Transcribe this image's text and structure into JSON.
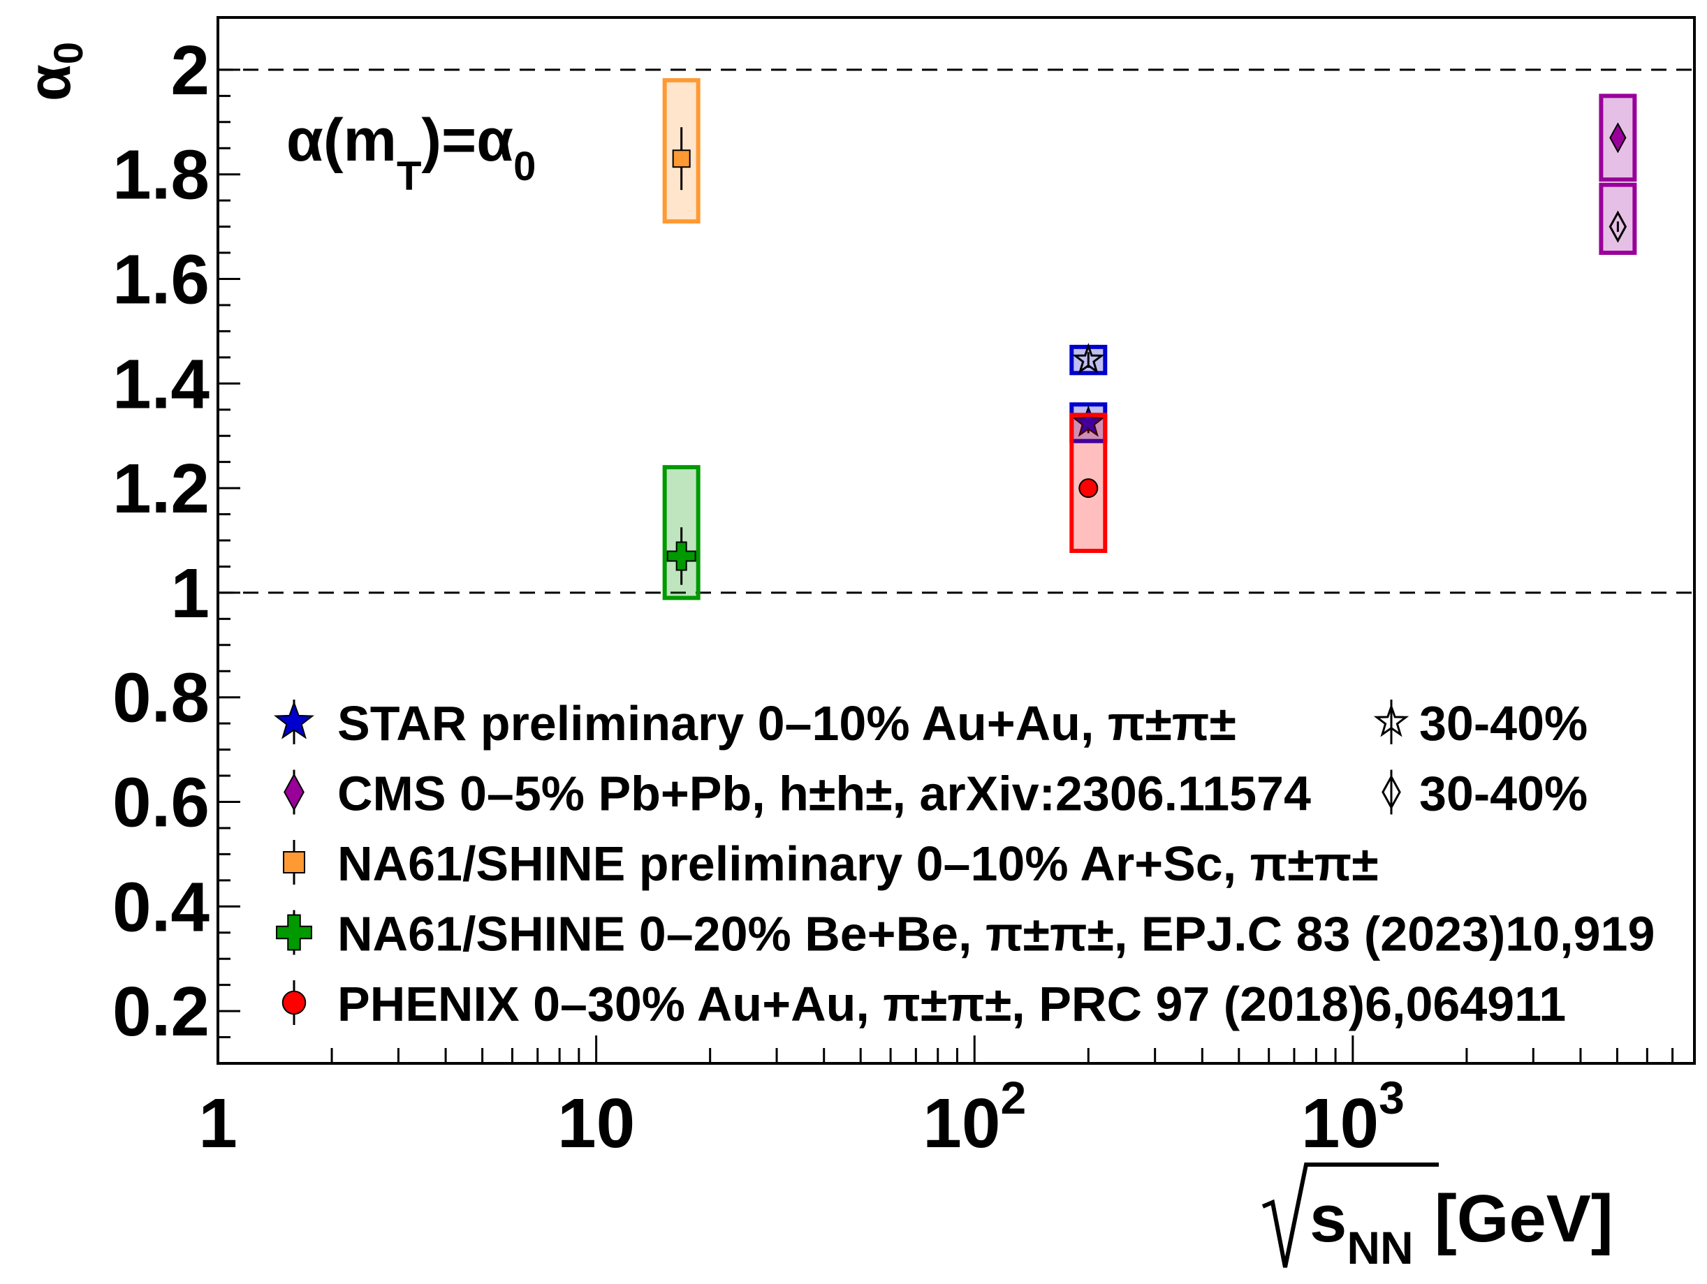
{
  "chart_data": {
    "type": "scatter",
    "x_scale": "log",
    "xlim": [
      1,
      8000
    ],
    "ylim": [
      0.1,
      2.1
    ],
    "xlabel": "√s_NN [GeV]",
    "xlabel_parts": {
      "sqrt_base": "s",
      "sub": "NN",
      "unit": "[GeV]"
    },
    "ylabel": "α_0",
    "ylabel_parts": {
      "base": "α",
      "sub": "0"
    },
    "x_ticks": [
      {
        "value": 1,
        "base": "1",
        "sup": ""
      },
      {
        "value": 10,
        "base": "10",
        "sup": ""
      },
      {
        "value": 100,
        "base": "10",
        "sup": "2"
      },
      {
        "value": 1000,
        "base": "10",
        "sup": "3"
      }
    ],
    "y_ticks": [
      0.2,
      0.4,
      0.6,
      0.8,
      1,
      1.2,
      1.4,
      1.6,
      1.8,
      2
    ],
    "y_tick_labels": [
      "0.2",
      "0.4",
      "0.6",
      "0.8",
      "1",
      "1.2",
      "1.4",
      "1.6",
      "1.8",
      "2"
    ],
    "reference_lines": [
      1,
      2
    ],
    "annotation": {
      "main": "α(m",
      "sub_T": "T",
      "mid": ")=α",
      "sub_0": "0"
    },
    "series": [
      {
        "name": "STAR preliminary 0–10% Au+Au,  π±π±",
        "color": "#0000cc",
        "marker": "star-filled",
        "points": [
          {
            "x": 200,
            "y": 1.325,
            "err": 0.02,
            "sys": [
              1.29,
              1.36
            ]
          }
        ]
      },
      {
        "name": "30-40%",
        "group": "STAR",
        "color": "#0000cc",
        "marker": "star-open",
        "points": [
          {
            "x": 200,
            "y": 1.445,
            "err": 0.015,
            "sys": [
              1.42,
              1.47
            ]
          }
        ]
      },
      {
        "name": "CMS 0–5% Pb+Pb, h±h±, arXiv:2306.11574",
        "color": "#990099",
        "marker": "diamond-filled",
        "points": [
          {
            "x": 5020,
            "y": 1.87,
            "err": 0.01,
            "sys": [
              1.79,
              1.95
            ]
          }
        ]
      },
      {
        "name": "30-40%",
        "group": "CMS",
        "color": "#990099",
        "marker": "diamond-open",
        "points": [
          {
            "x": 5020,
            "y": 1.7,
            "err": 0.01,
            "sys": [
              1.65,
              1.78
            ]
          }
        ]
      },
      {
        "name": "NA61/SHINE preliminary 0–10% Ar+Sc,  π±π±",
        "color": "#ff9933",
        "marker": "square-filled",
        "points": [
          {
            "x": 16.8,
            "y": 1.83,
            "err": 0.06,
            "sys": [
              1.71,
              1.98
            ]
          }
        ]
      },
      {
        "name": "NA61/SHINE 0–20% Be+Be,  π±π±, EPJ.C 83 (2023)10,919",
        "color": "#009900",
        "marker": "cross-filled",
        "points": [
          {
            "x": 16.8,
            "y": 1.07,
            "err": 0.055,
            "sys": [
              0.99,
              1.24
            ]
          }
        ]
      },
      {
        "name": "PHENIX 0–30% Au+Au,  π±π±, PRC 97 (2018)6,064911",
        "color": "#ff0000",
        "marker": "circle-filled",
        "points": [
          {
            "x": 200,
            "y": 1.2,
            "err": 0.015,
            "sys": [
              1.08,
              1.34
            ]
          }
        ]
      }
    ],
    "legend": {
      "placement": "bottom-left",
      "rows": [
        {
          "marker": "star-filled",
          "color": "#0000cc",
          "label": "STAR preliminary 0–10% Au+Au,  π±π±",
          "extra_marker": "star-open",
          "extra_label": "30-40%"
        },
        {
          "marker": "diamond-filled",
          "color": "#990099",
          "label": "CMS 0–5% Pb+Pb, h±h±, arXiv:2306.11574",
          "extra_marker": "diamond-open",
          "extra_label": "30-40%"
        },
        {
          "marker": "square-filled",
          "color": "#ff9933",
          "label": "NA61/SHINE preliminary 0–10% Ar+Sc,  π±π±"
        },
        {
          "marker": "cross-filled",
          "color": "#009900",
          "label": "NA61/SHINE 0–20% Be+Be,  π±π±, EPJ.C 83 (2023)10,919"
        },
        {
          "marker": "circle-filled",
          "color": "#ff0000",
          "label": "PHENIX 0–30% Au+Au,  π±π±, PRC 97 (2018)6,064911"
        }
      ]
    },
    "grid": false
  }
}
